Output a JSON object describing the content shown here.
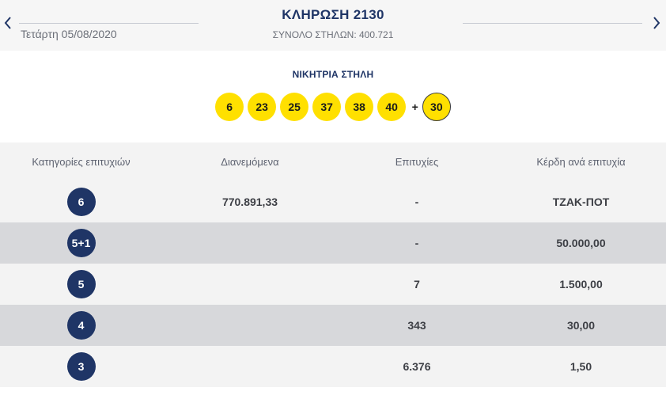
{
  "header": {
    "title": "ΚΛΗΡΩΣΗ 2130",
    "date": "Τετάρτη 05/08/2020",
    "total_columns": "ΣΥΝΟΛΟ ΣΤΗΛΩΝ: 400.721"
  },
  "winning": {
    "label": "ΝΙΚΗΤΡΙΑ ΣΤΗΛΗ",
    "numbers": [
      "6",
      "23",
      "25",
      "37",
      "38",
      "40"
    ],
    "plus": "+",
    "joker": "30"
  },
  "table": {
    "headers": [
      "Κατηγορίες επιτυχιών",
      "Διανεμόμενα",
      "Επιτυχίες",
      "Κέρδη ανά επιτυχία"
    ],
    "rows": [
      {
        "category": "6",
        "distributed": "770.891,33",
        "winners": "-",
        "prize": "ΤΖΑΚ-ΠΟΤ"
      },
      {
        "category": "5+1",
        "distributed": "",
        "winners": "-",
        "prize": "50.000,00"
      },
      {
        "category": "5",
        "distributed": "",
        "winners": "7",
        "prize": "1.500,00"
      },
      {
        "category": "4",
        "distributed": "",
        "winners": "343",
        "prize": "30,00"
      },
      {
        "category": "3",
        "distributed": "",
        "winners": "6.376",
        "prize": "1,50"
      }
    ]
  },
  "icons": {
    "prev": "chevron-left-icon",
    "next": "chevron-right-icon"
  },
  "colors": {
    "ball": "#ffe000",
    "badge": "#1f3566",
    "title": "#1f3566"
  }
}
